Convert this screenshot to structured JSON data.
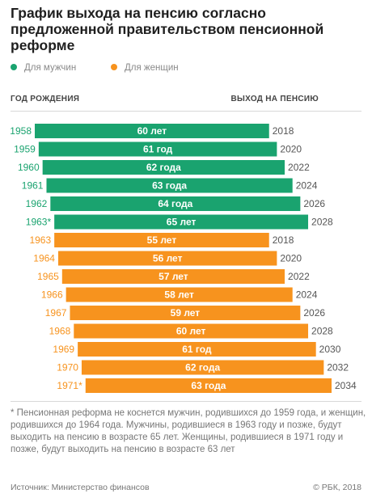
{
  "title": "График выхода на пенсию согласно предложенной правительством пенсионной реформе",
  "legend": [
    {
      "label": "Для мужчин",
      "color": "#1aa36f"
    },
    {
      "label": "Для женщин",
      "color": "#f7931e"
    }
  ],
  "headers": {
    "left": "ГОД РОЖДЕНИЯ",
    "right": "ВЫХОД НА ПЕНСИЮ"
  },
  "chart_data": {
    "type": "bar",
    "orientation": "horizontal",
    "rows": [
      {
        "birth_year": "1958",
        "age_label": "60 лет",
        "retire_year": "2018",
        "series": "men"
      },
      {
        "birth_year": "1959",
        "age_label": "61 год",
        "retire_year": "2020",
        "series": "men"
      },
      {
        "birth_year": "1960",
        "age_label": "62 года",
        "retire_year": "2022",
        "series": "men"
      },
      {
        "birth_year": "1961",
        "age_label": "63 года",
        "retire_year": "2024",
        "series": "men"
      },
      {
        "birth_year": "1962",
        "age_label": "64 года",
        "retire_year": "2026",
        "series": "men"
      },
      {
        "birth_year": "1963*",
        "age_label": "65 лет",
        "retire_year": "2028",
        "series": "men"
      },
      {
        "birth_year": "1963",
        "age_label": "55 лет",
        "retire_year": "2018",
        "series": "women"
      },
      {
        "birth_year": "1964",
        "age_label": "56 лет",
        "retire_year": "2020",
        "series": "women"
      },
      {
        "birth_year": "1965",
        "age_label": "57 лет",
        "retire_year": "2022",
        "series": "women"
      },
      {
        "birth_year": "1966",
        "age_label": "58 лет",
        "retire_year": "2024",
        "series": "women"
      },
      {
        "birth_year": "1967",
        "age_label": "59 лет",
        "retire_year": "2026",
        "series": "women"
      },
      {
        "birth_year": "1968",
        "age_label": "60 лет",
        "retire_year": "2028",
        "series": "women"
      },
      {
        "birth_year": "1969",
        "age_label": "61 год",
        "retire_year": "2030",
        "series": "women"
      },
      {
        "birth_year": "1970",
        "age_label": "62 года",
        "retire_year": "2032",
        "series": "women"
      },
      {
        "birth_year": "1971*",
        "age_label": "63 года",
        "retire_year": "2034",
        "series": "women"
      }
    ],
    "colors": {
      "men": "#1aa36f",
      "women": "#f7931e"
    }
  },
  "footnote": "* Пенсионная реформа не коснется мужчин, родившихся до 1959 года, и женщин, родившихся до 1964 года. Мужчины, родившиеся в 1963 году и позже, будут выходить на пенсию в возрасте 65 лет. Женщины, родившиеся в 1971 году и позже, будут выходить на пенсию в возрасте 63 лет",
  "source": "Источник: Министерство финансов",
  "copyright": "© РБК, 2018"
}
